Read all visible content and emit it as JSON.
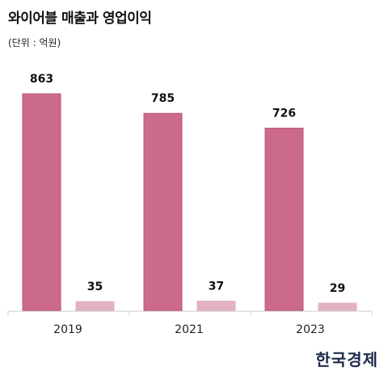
{
  "header": {
    "title": "와이어블 매출과 영업이익",
    "unit": "(단위 : 억원)"
  },
  "logo_text": "한국경제",
  "colors": {
    "revenue": "#cc6a8c",
    "revenue_stroke": "#b8557a",
    "operating_profit": "#e2b2c0",
    "axis": "#cccccc"
  },
  "chart_data": {
    "type": "bar",
    "categories": [
      "2019",
      "2021",
      "2023"
    ],
    "series": [
      {
        "values": [
          863,
          785,
          726
        ]
      },
      {
        "values": [
          35,
          37,
          29
        ]
      }
    ],
    "ylim": [
      0,
      1000
    ],
    "grid": false,
    "legend": "none"
  }
}
